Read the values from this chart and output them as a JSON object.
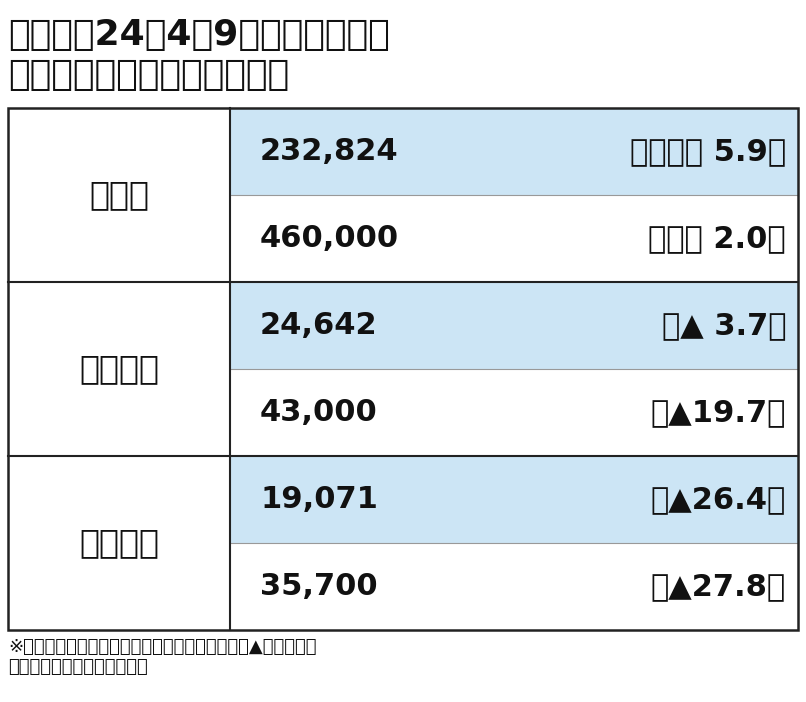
{
  "title_line1": "トヨタの24年4～9月期連結決算と",
  "title_line2": "通期見通し（国際会計基準）",
  "title_fontsize": 26,
  "bg_color": "#ffffff",
  "table_bg_highlighted": "#cce5f5",
  "border_color": "#222222",
  "rows": [
    {
      "label": "売上高",
      "value1": "232,824",
      "change1": "（　　　 5.9）",
      "value2": "460,000",
      "change2": "（　　 2.0）"
    },
    {
      "label": "営業利益",
      "value1": "24,642",
      "change1": "（▲ 3.7）",
      "value2": "43,000",
      "change2": "（▲19.7）"
    },
    {
      "label": "当期利益",
      "value1": "19,071",
      "change1": "（▲26.4）",
      "value2": "35,700",
      "change2": "（▲27.8）"
    }
  ],
  "footnote_line1": "※単位：億円、カッコ内は前年同期比増減率％、▲はマイナス",
  "footnote_line2": "上段：実績、下段：通期予想",
  "footnote_fontsize": 13,
  "label_fontsize": 24,
  "value_fontsize": 22
}
